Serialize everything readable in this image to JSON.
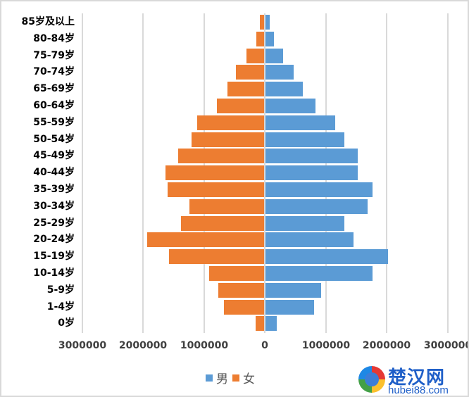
{
  "chart_data": {
    "type": "bar",
    "orientation": "horizontal",
    "subtype": "population-pyramid",
    "title": "",
    "categories": [
      "0岁",
      "1-4岁",
      "5-9岁",
      "10-14岁",
      "15-19岁",
      "20-24岁",
      "25-29岁",
      "30-34岁",
      "35-39岁",
      "40-44岁",
      "45-49岁",
      "50-54岁",
      "55-59岁",
      "60-64岁",
      "65-69岁",
      "70-74岁",
      "75-79岁",
      "80-84岁",
      "85岁及以上"
    ],
    "series": [
      {
        "name": "男",
        "color": "#5b9bd5",
        "side": "right",
        "values": [
          180000,
          800000,
          910000,
          1760000,
          2010000,
          1440000,
          1300000,
          1680000,
          1760000,
          1520000,
          1520000,
          1290000,
          1150000,
          820000,
          610000,
          460000,
          290000,
          140000,
          70000
        ]
      },
      {
        "name": "女",
        "color": "#ed7d31",
        "side": "left",
        "values": [
          150000,
          670000,
          760000,
          910000,
          1570000,
          1930000,
          1380000,
          1240000,
          1590000,
          1630000,
          1420000,
          1200000,
          1110000,
          790000,
          610000,
          470000,
          300000,
          140000,
          80000
        ]
      }
    ],
    "xlabel": "",
    "ylabel": "",
    "xlim": [
      -3000000,
      3000000
    ],
    "x_tick_labels": [
      "3000000",
      "2000000",
      "1000000",
      "0",
      "1000000",
      "2000000",
      "3000000"
    ],
    "grid": true,
    "legend_position": "bottom"
  },
  "legend": {
    "male": "男",
    "female": "女"
  },
  "watermark": {
    "title": "楚汉网",
    "url": "hubei88.com"
  }
}
